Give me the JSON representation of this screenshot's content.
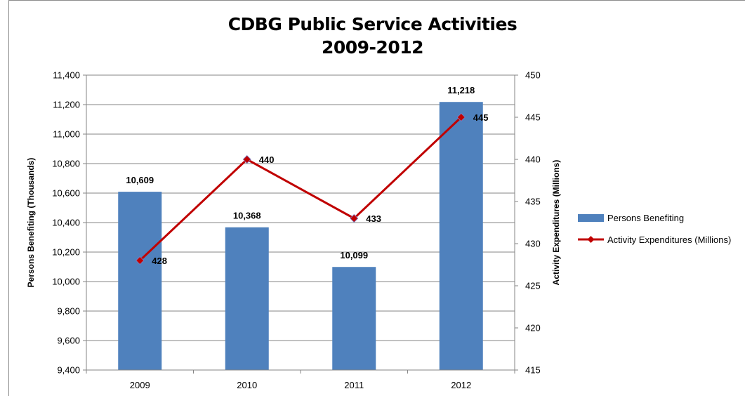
{
  "chart_data": {
    "type": "bar",
    "title_line1": "CDBG Public Service Activities",
    "title_line2": "2009-2012",
    "categories": [
      "2009",
      "2010",
      "2011",
      "2012"
    ],
    "series": [
      {
        "name": "Persons Benefiting",
        "kind": "bar",
        "axis": "left",
        "values": [
          10609,
          10368,
          10099,
          11218
        ],
        "labels": [
          "10,609",
          "10,368",
          "10,099",
          "11,218"
        ],
        "color": "#4f81bd"
      },
      {
        "name": "Activity Expenditures (Millions)",
        "kind": "line",
        "axis": "right",
        "values": [
          428,
          440,
          433,
          445
        ],
        "labels": [
          "428",
          "440",
          "433",
          "445"
        ],
        "color": "#c00000"
      }
    ],
    "ylabel": "Persons Benefiting (Thousands)",
    "y2label": "Activity Expenditures (Millions)",
    "ylim": [
      9400,
      11400
    ],
    "y2lim": [
      415,
      450
    ],
    "yticks": [
      "9,400",
      "9,600",
      "9,800",
      "10,000",
      "10,200",
      "10,400",
      "10,600",
      "10,800",
      "11,000",
      "11,200",
      "11,400"
    ],
    "y2ticks": [
      "415",
      "420",
      "425",
      "430",
      "435",
      "440",
      "445",
      "450"
    ],
    "grid": true,
    "legend_position": "right"
  }
}
